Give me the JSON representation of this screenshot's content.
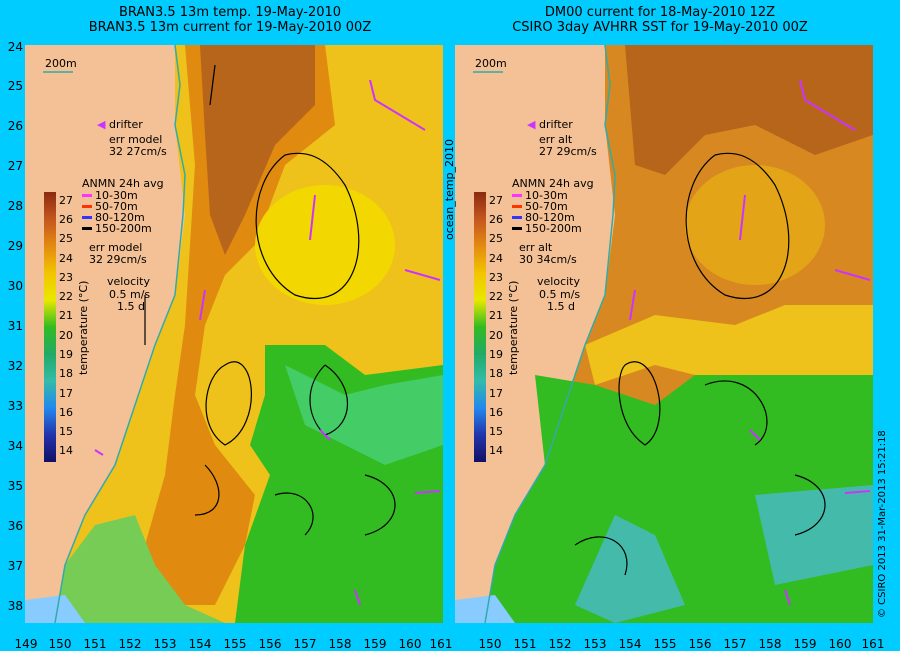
{
  "left": {
    "title_line1": "BRAN3.5 13m temp. 19-May-2010",
    "title_line2": "BRAN3.5 13m current for 19-May-2010 00Z",
    "scale_label": "200m",
    "drifter_label": "drifter",
    "err1_label": "err model",
    "err1_value": "32 27cm/s",
    "anmn_title": "ANMN 24h avg",
    "depths": [
      "10-30m",
      "50-70m",
      "80-120m",
      "150-200m"
    ],
    "err2_label": "err model",
    "err2_value": "32 29cm/s",
    "velocity_label": "velocity",
    "velocity_value": "0.5 m/s",
    "velocity_days": "1.5 d"
  },
  "right": {
    "title_line1": "DM00 current for 18-May-2010 12Z",
    "title_line2": "CSIRO 3day AVHRR SST for 19-May-2010 00Z",
    "scale_label": "200m",
    "drifter_label": "drifter",
    "err1_label": "err alt",
    "err1_value": "27 29cm/s",
    "anmn_title": "ANMN 24h avg",
    "depths": [
      "10-30m",
      "50-70m",
      "80-120m",
      "150-200m"
    ],
    "err2_label": "err alt",
    "err2_value": "30 34cm/s",
    "velocity_label": "velocity",
    "velocity_value": "0.5 m/s",
    "velocity_days": "1.5 d"
  },
  "depth_colors": [
    "#ff33ff",
    "#ff3300",
    "#3333ff",
    "#000000"
  ],
  "colorbar": {
    "label": "temperature (°C)",
    "ticks": [
      "27",
      "26",
      "25",
      "24",
      "23",
      "22",
      "21",
      "20",
      "19",
      "18",
      "17",
      "16",
      "15",
      "14"
    ]
  },
  "lat_labels": [
    "24",
    "25",
    "26",
    "27",
    "28",
    "29",
    "30",
    "31",
    "32",
    "33",
    "34",
    "35",
    "36",
    "37",
    "38"
  ],
  "lon_labels_left": [
    "149",
    "150",
    "151",
    "152",
    "153",
    "154",
    "155",
    "156",
    "157",
    "158",
    "159",
    "160",
    "161"
  ],
  "lon_labels_right": [
    "150",
    "151",
    "152",
    "153",
    "154",
    "155",
    "156",
    "157",
    "158",
    "159",
    "160",
    "161"
  ],
  "middle_label": "ocean_temp_2010",
  "credit": "© CSIRO 2013   31-Mar-2013 15:21:18",
  "colors": {
    "background": "#00ccff",
    "land": "#f3c195",
    "warm": "#e08a10",
    "hot": "#b8651c",
    "mid": "#f2c400",
    "cool_green": "#33bb22",
    "cold": "#44bbaa",
    "coastline": "#33aaaa",
    "drifter": "#cc33ff"
  }
}
